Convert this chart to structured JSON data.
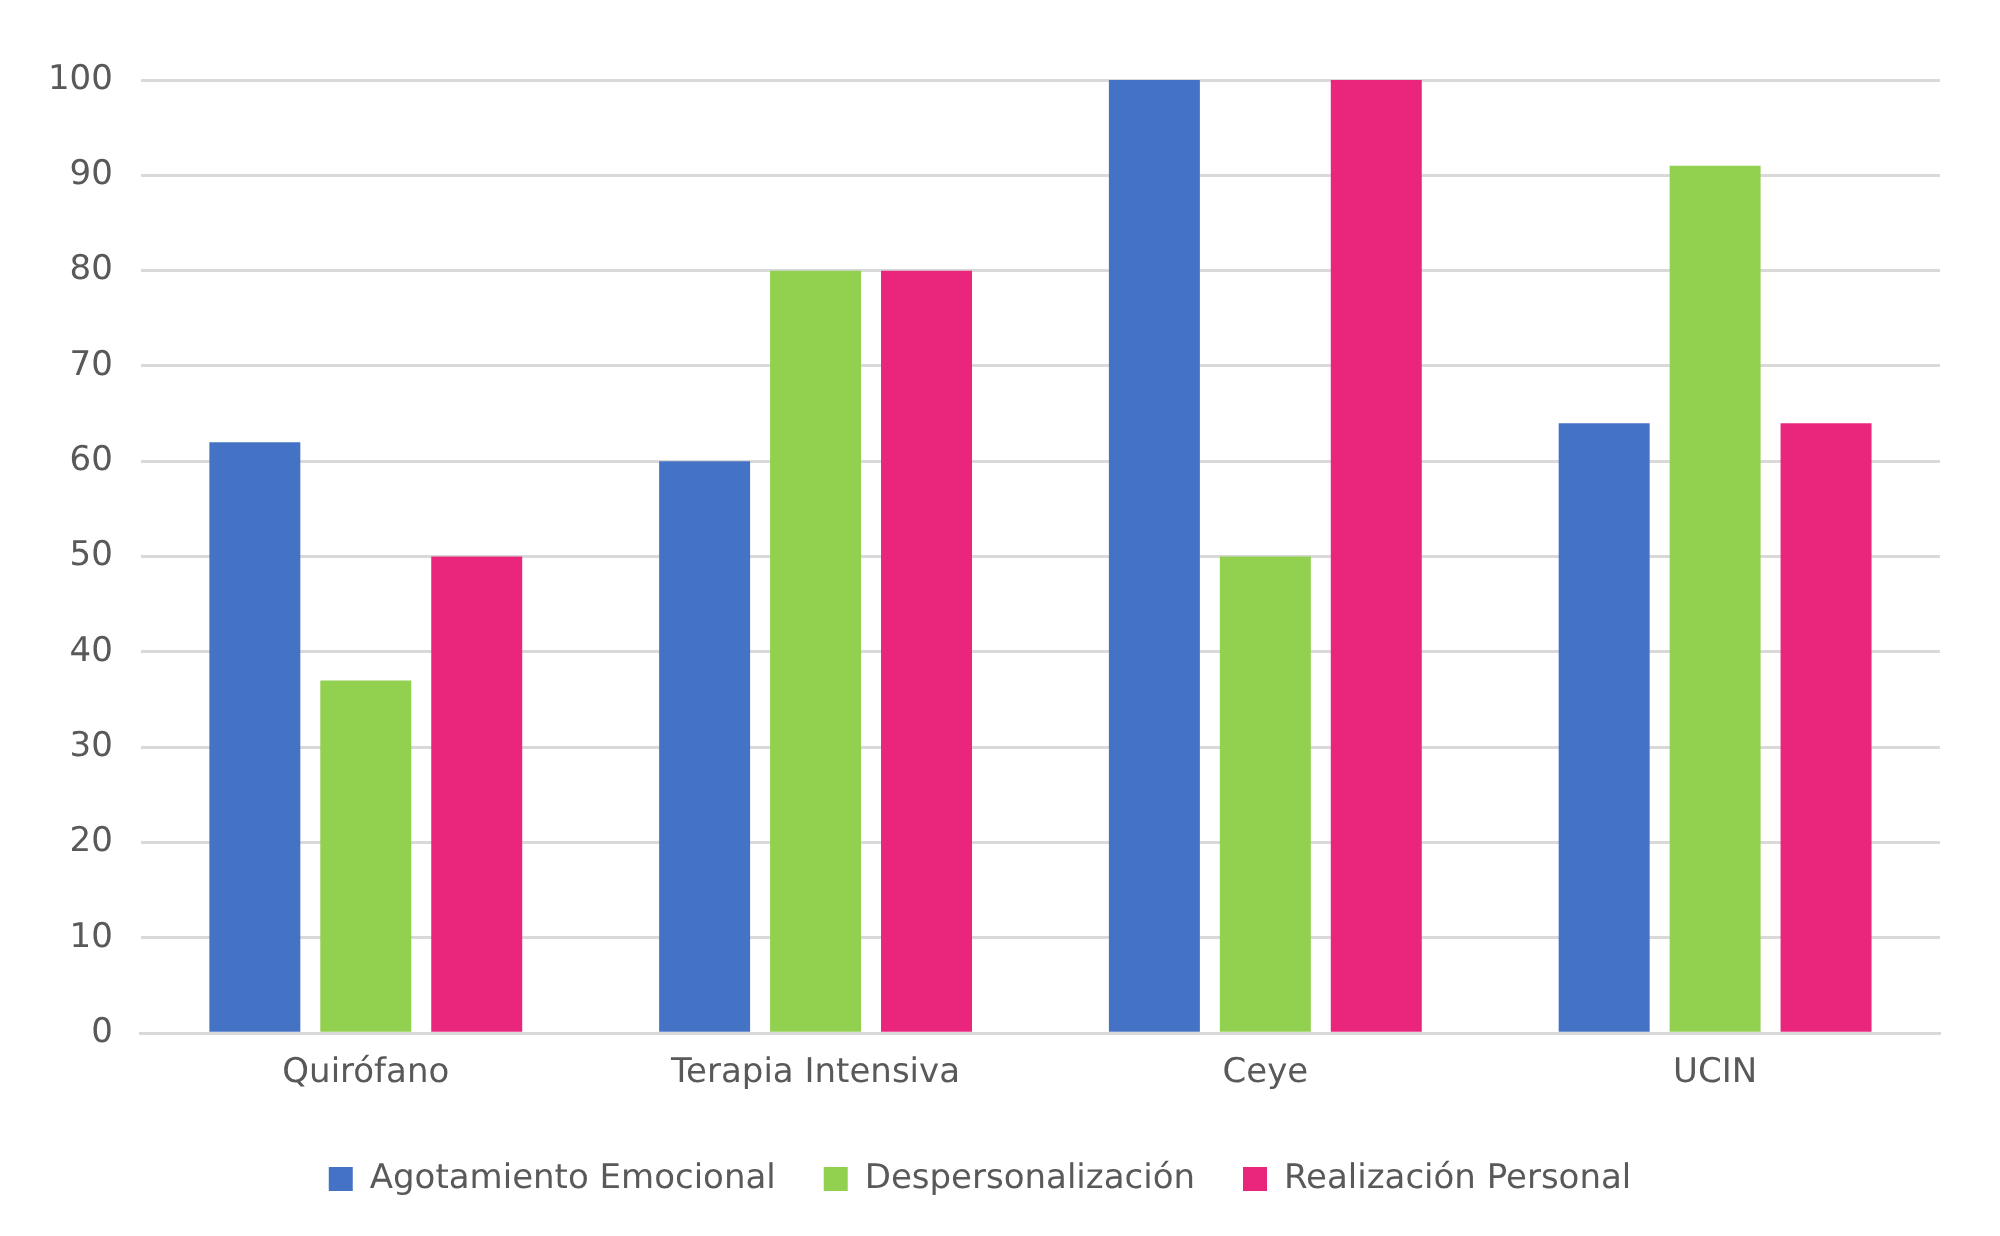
{
  "chart_data": {
    "type": "bar",
    "categories": [
      "Quirófano",
      "Terapia Intensiva",
      "Ceye",
      "UCIN"
    ],
    "series": [
      {
        "name": "Agotamiento Emocional",
        "color": "#4472c4",
        "values": [
          62,
          60,
          100,
          64
        ]
      },
      {
        "name": "Despersonalización",
        "color": "#92d050",
        "values": [
          37,
          80,
          50,
          91
        ]
      },
      {
        "name": "Realización Personal",
        "color": "#e9267c",
        "values": [
          50,
          80,
          100,
          64
        ]
      }
    ],
    "ylim": [
      0,
      100
    ],
    "yticks": [
      0,
      10,
      20,
      30,
      40,
      50,
      60,
      70,
      80,
      90,
      100
    ],
    "grid": "y",
    "legend": "bottom"
  }
}
